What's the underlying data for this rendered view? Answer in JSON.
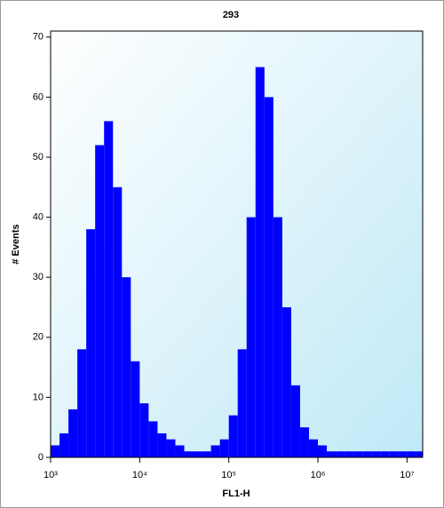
{
  "chart_data": {
    "type": "histogram",
    "title": "293",
    "xlabel": "FL1-H",
    "ylabel": "# Events",
    "color": "#0000ff",
    "xscale": "log",
    "bins": [
      1000,
      1259,
      1585,
      1995,
      2512,
      3162,
      3981,
      5012,
      6310,
      7943,
      10000,
      12590,
      15850,
      19950,
      25120,
      31620,
      39810,
      50120,
      63100,
      79430,
      100000,
      125900,
      158500,
      199500,
      251200,
      316200,
      398100,
      501200,
      631000,
      794300,
      1000000,
      1259000,
      1585000,
      1995000,
      2512000,
      3162000,
      3981000,
      5012000,
      6310000,
      7943000,
      10000000,
      12590000,
      15000000
    ],
    "values": [
      2,
      4,
      8,
      18,
      38,
      52,
      56,
      45,
      30,
      16,
      9,
      6,
      4,
      3,
      2,
      1,
      1,
      1,
      2,
      3,
      7,
      18,
      40,
      65,
      60,
      40,
      25,
      12,
      5,
      3,
      2,
      1,
      1,
      1,
      1,
      1,
      1,
      1,
      1,
      1,
      1,
      1
    ],
    "xlim": [
      1000,
      15000000
    ],
    "ylim": [
      0,
      71
    ],
    "xticks": [
      {
        "value": 1000,
        "label": "10³"
      },
      {
        "value": 10000,
        "label": "10⁴"
      },
      {
        "value": 100000,
        "label": "10⁵"
      },
      {
        "value": 1000000,
        "label": "10⁶"
      },
      {
        "value": 10000000,
        "label": "10⁷"
      }
    ],
    "yticks": [
      0,
      10,
      20,
      30,
      40,
      50,
      60,
      70
    ]
  }
}
